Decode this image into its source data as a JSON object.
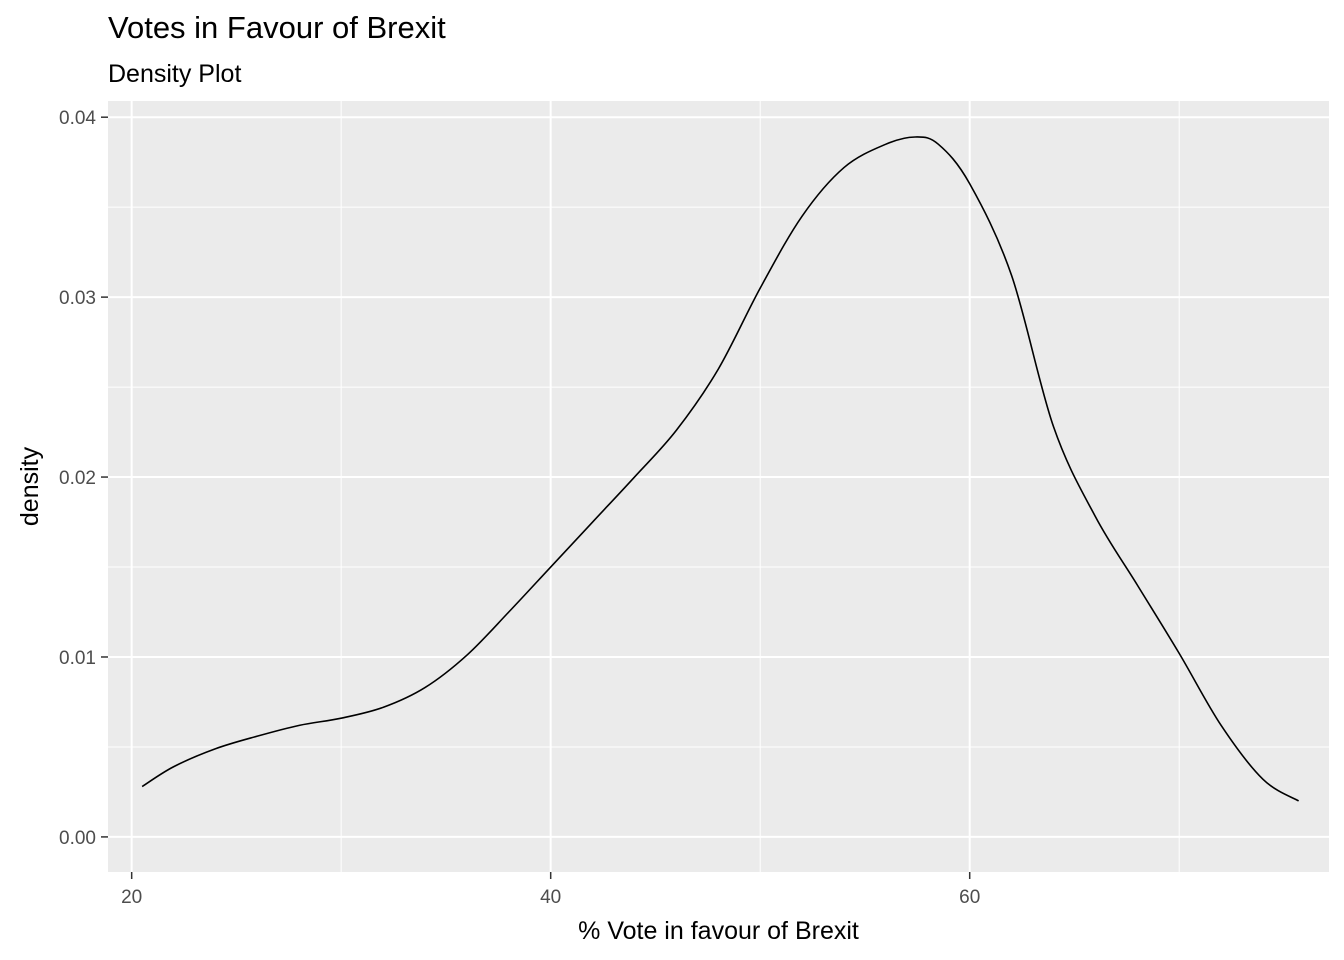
{
  "chart_data": {
    "type": "line",
    "title": "Votes in Favour of Brexit",
    "subtitle": "Density Plot",
    "xlabel": "% Vote in favour of Brexit",
    "ylabel": "density",
    "xlim": [
      18.87,
      77.15
    ],
    "ylim": [
      -0.00195,
      0.0409
    ],
    "x_ticks": [
      20,
      40,
      60
    ],
    "x_tick_labels": [
      "20",
      "40",
      "60"
    ],
    "y_ticks": [
      0.0,
      0.01,
      0.02,
      0.03,
      0.04
    ],
    "y_tick_labels": [
      "0.00",
      "0.01",
      "0.02",
      "0.03",
      "0.04"
    ],
    "grid": true,
    "legend": "none",
    "colors": {
      "panel_background": "#EBEBEB",
      "grid": "#FFFFFF",
      "line": "#000000",
      "tick_label": "#4D4D4D"
    },
    "series": [
      {
        "x": [
          20.5,
          22,
          24,
          26,
          28,
          30,
          32,
          34,
          36,
          38,
          40,
          42,
          44,
          46,
          48,
          50,
          52,
          54,
          56,
          57.4,
          58.5,
          60,
          62,
          64,
          66,
          68,
          70,
          72,
          74,
          75.7
        ],
        "values": [
          0.0028,
          0.0039,
          0.0049,
          0.0056,
          0.0062,
          0.0066,
          0.0072,
          0.0083,
          0.0101,
          0.0125,
          0.015,
          0.0175,
          0.02,
          0.0226,
          0.026,
          0.0305,
          0.0345,
          0.0372,
          0.0385,
          0.0389,
          0.0385,
          0.0363,
          0.0312,
          0.0228,
          0.0178,
          0.014,
          0.0102,
          0.0062,
          0.0032,
          0.002
        ]
      }
    ]
  }
}
